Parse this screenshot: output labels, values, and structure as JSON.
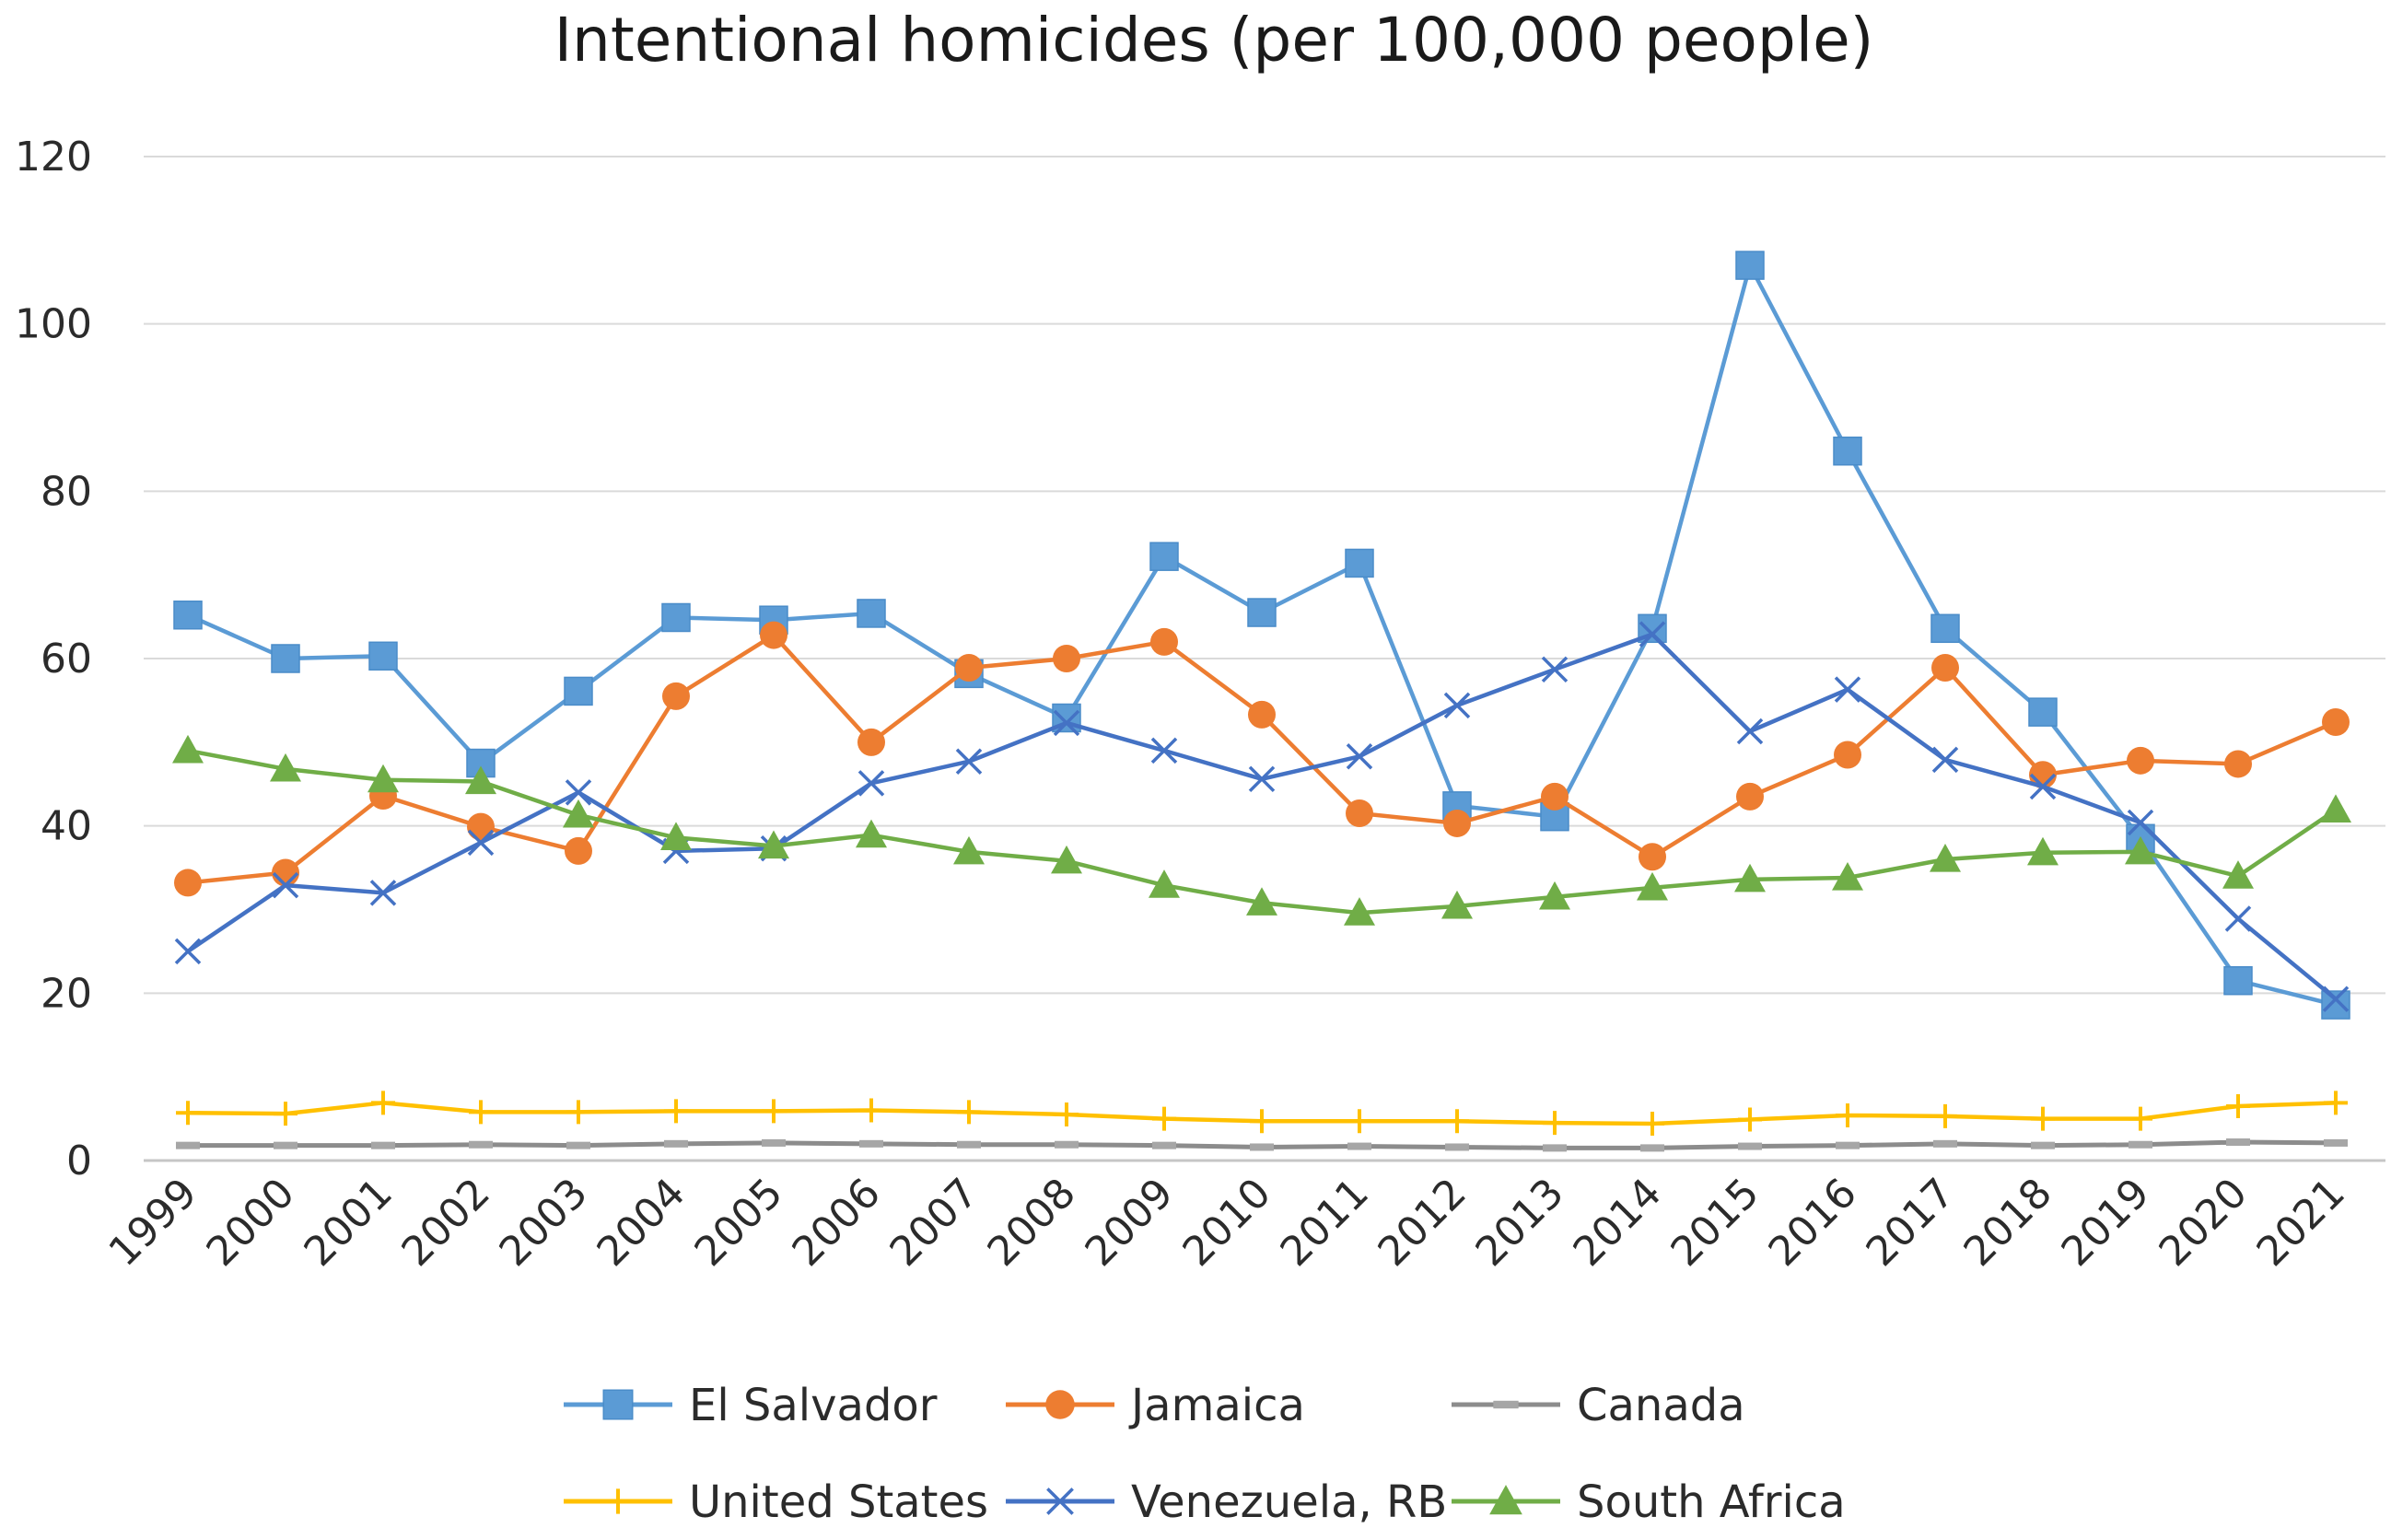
{
  "chart_data": {
    "type": "line",
    "title": "Intentional homicides (per 100,000 people)",
    "xlabel": "",
    "ylabel": "",
    "ylim": [
      0,
      120
    ],
    "yticks": [
      0,
      20,
      40,
      60,
      80,
      100,
      120
    ],
    "grid": true,
    "legend_position": "bottom",
    "categories": [
      "1999",
      "2000",
      "2001",
      "2002",
      "2003",
      "2004",
      "2005",
      "2006",
      "2007",
      "2008",
      "2009",
      "2010",
      "2011",
      "2012",
      "2013",
      "2014",
      "2015",
      "2016",
      "2017",
      "2018",
      "2019",
      "2020",
      "2021"
    ],
    "series": [
      {
        "name": "El Salvador",
        "color": "#5b9bd5",
        "marker": "square",
        "values": [
          65.2,
          60.0,
          60.3,
          47.5,
          56.1,
          64.9,
          64.6,
          65.4,
          58.2,
          52.9,
          72.2,
          65.5,
          71.4,
          42.4,
          41.1,
          63.6,
          107.0,
          84.8,
          63.6,
          53.6,
          38.5,
          21.5,
          18.6
        ]
      },
      {
        "name": "Jamaica",
        "color": "#ed7d31",
        "marker": "circle",
        "values": [
          33.2,
          34.4,
          43.6,
          39.9,
          37.0,
          55.5,
          62.8,
          50.0,
          58.9,
          60.0,
          62.0,
          53.3,
          41.5,
          40.3,
          43.5,
          36.3,
          43.5,
          48.5,
          58.9,
          46.1,
          47.8,
          47.4,
          52.4
        ]
      },
      {
        "name": "Canada",
        "color": "#8c8c8c",
        "marker": "dash",
        "values": [
          1.8,
          1.8,
          1.8,
          1.9,
          1.8,
          2.0,
          2.1,
          2.0,
          1.9,
          1.9,
          1.8,
          1.6,
          1.7,
          1.6,
          1.5,
          1.5,
          1.7,
          1.8,
          2.0,
          1.8,
          1.9,
          2.2,
          2.1
        ]
      },
      {
        "name": "United States",
        "color": "#ffc000",
        "marker": "plus",
        "values": [
          5.7,
          5.6,
          6.9,
          5.8,
          5.8,
          5.9,
          5.9,
          6.0,
          5.8,
          5.5,
          5.0,
          4.7,
          4.7,
          4.7,
          4.5,
          4.4,
          4.9,
          5.4,
          5.3,
          5.0,
          5.0,
          6.5,
          6.9
        ]
      },
      {
        "name": "Venezuela, RB",
        "color": "#4472c4",
        "marker": "x",
        "values": [
          25.0,
          32.9,
          32.0,
          38.0,
          44.0,
          37.0,
          37.3,
          45.1,
          47.7,
          52.3,
          49.0,
          45.6,
          48.3,
          54.4,
          58.7,
          62.9,
          51.3,
          56.3,
          47.9,
          44.7,
          40.4,
          28.9,
          19.3
        ]
      },
      {
        "name": "South Africa",
        "color": "#70ad47",
        "marker": "triangle",
        "values": [
          49.0,
          46.8,
          45.5,
          45.3,
          41.3,
          38.6,
          37.6,
          38.9,
          36.9,
          35.8,
          32.9,
          30.8,
          29.6,
          30.4,
          31.5,
          32.6,
          33.6,
          33.8,
          36.0,
          36.8,
          36.9,
          34.0,
          41.9
        ]
      }
    ]
  }
}
